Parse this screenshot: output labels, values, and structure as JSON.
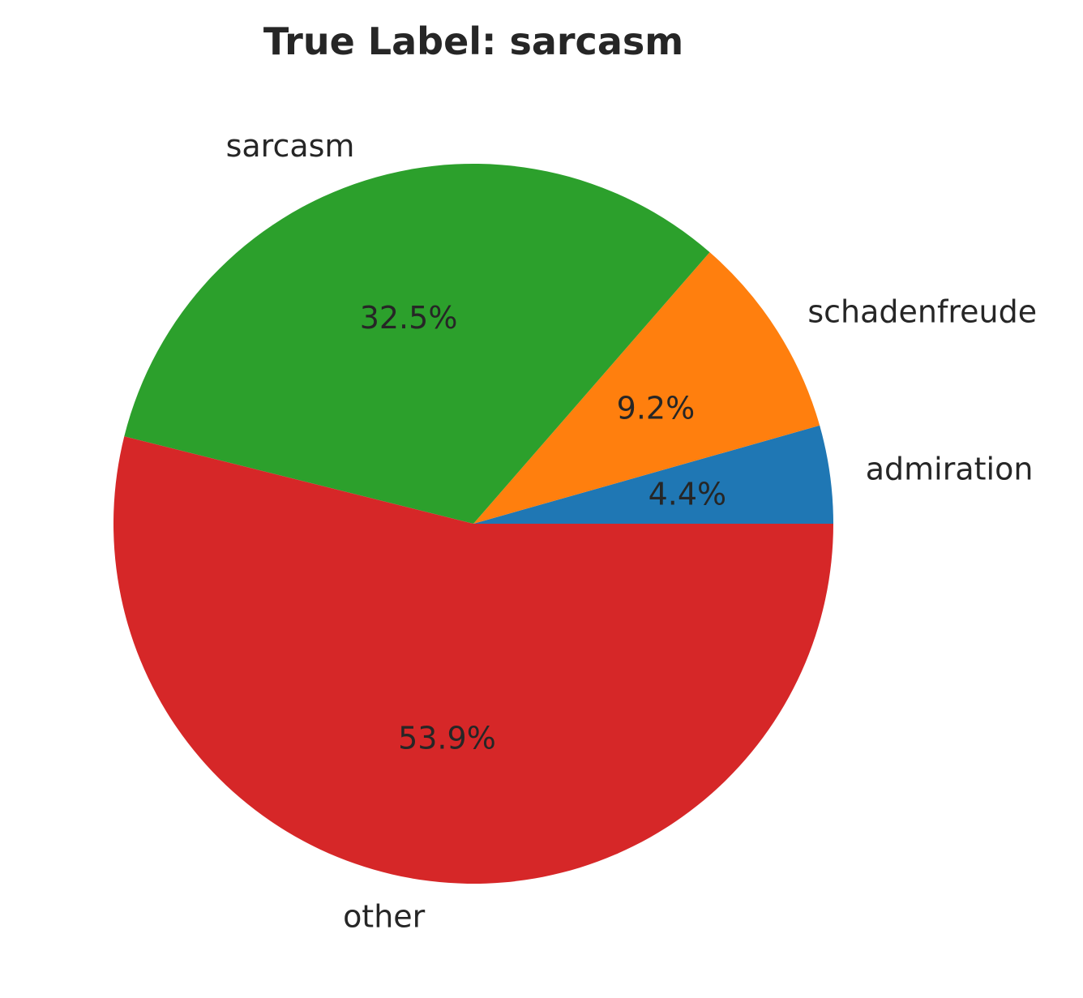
{
  "chart_data": {
    "type": "pie",
    "title": "True Label: sarcasm",
    "start_angle_deg": 0,
    "direction": "counterclockwise",
    "slices": [
      {
        "label": "admiration",
        "value": 4.4,
        "pct_label": "4.4%",
        "color": "#1f77b4"
      },
      {
        "label": "schadenfreude",
        "value": 9.2,
        "pct_label": "9.2%",
        "color": "#ff7f0e"
      },
      {
        "label": "sarcasm",
        "value": 32.5,
        "pct_label": "32.5%",
        "color": "#2ca02c"
      },
      {
        "label": "other",
        "value": 53.9,
        "pct_label": "53.9%",
        "color": "#d62728"
      }
    ]
  }
}
